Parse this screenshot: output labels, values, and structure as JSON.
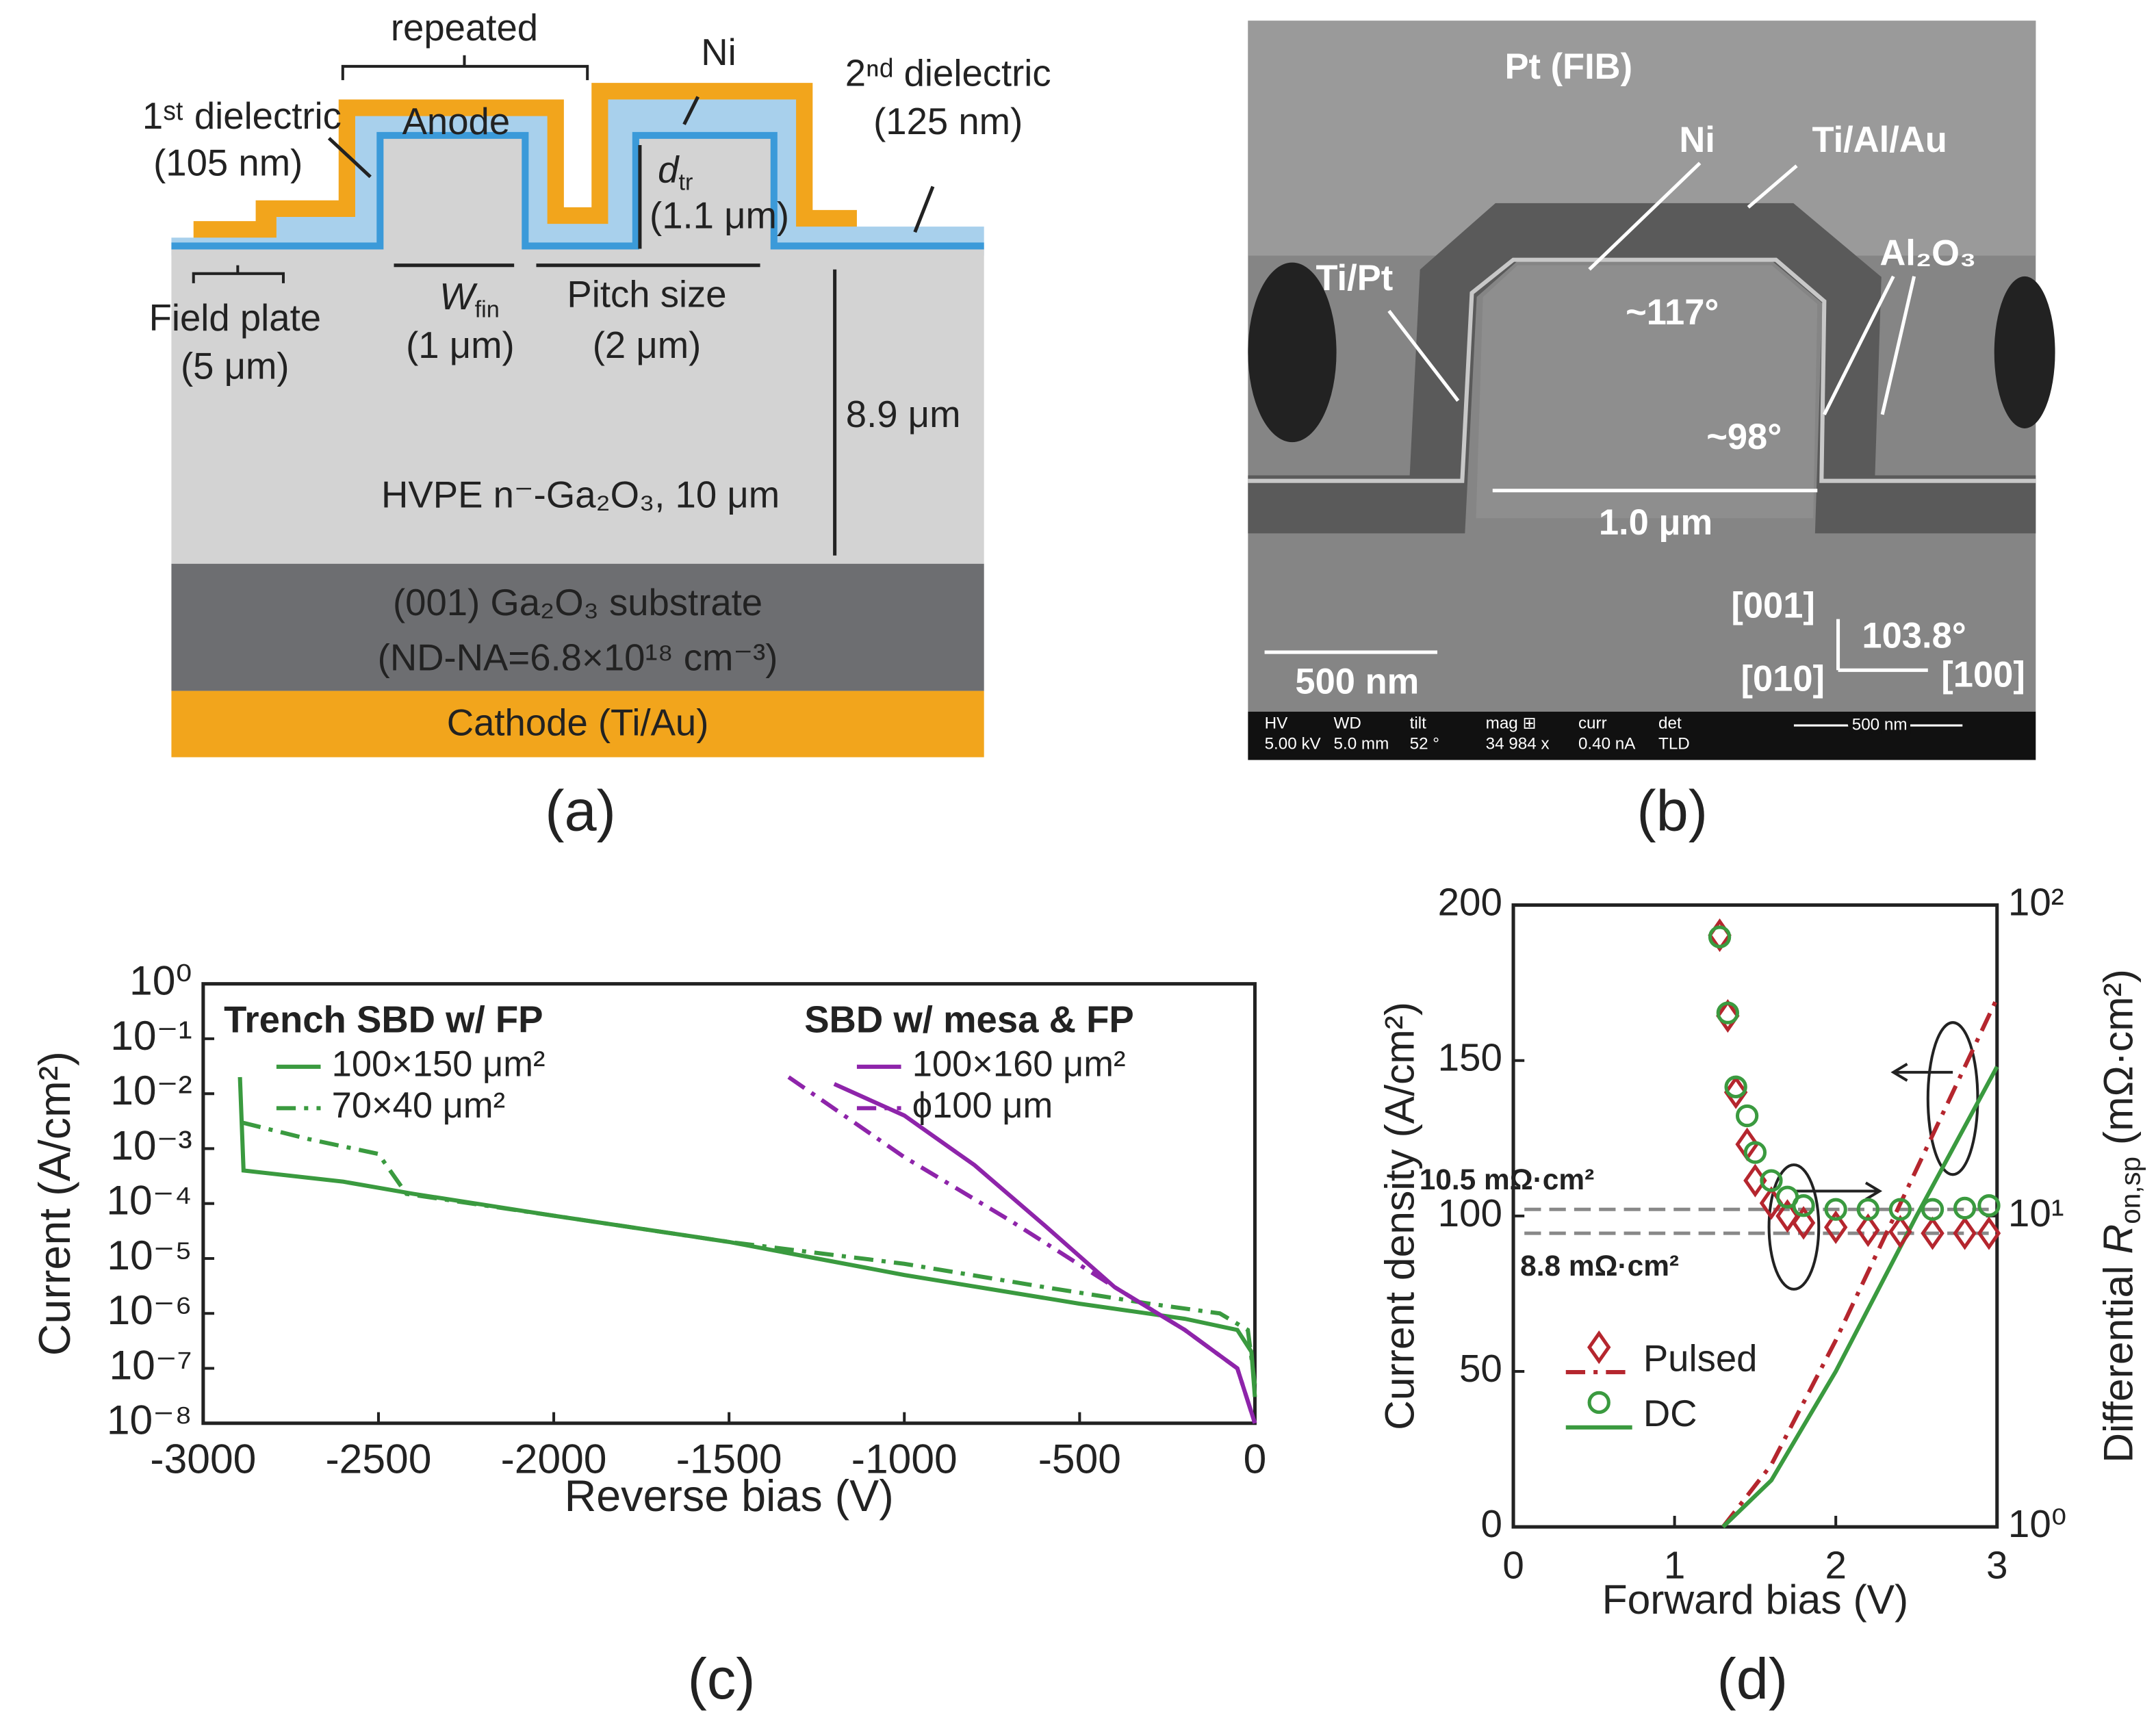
{
  "panel_labels": [
    "(a)",
    "(b)",
    "(c)",
    "(d)"
  ],
  "panel_a": {
    "repeated": "repeated",
    "ni": "Ni",
    "dielectric1": "1ˢᵗ dielectric",
    "dielectric1_thickness": "(105 nm)",
    "anode": "Anode",
    "dielectric2": "2ⁿᵈ dielectric",
    "dielectric2_thickness": "(125 nm)",
    "dtr": "d",
    "dtr_sub": "tr",
    "dtr_value": "(1.1 μm)",
    "field_plate": "Field plate",
    "field_plate_value": "(5 μm)",
    "wfin": "W",
    "wfin_sub": "fin",
    "wfin_value": "(1 μm)",
    "pitch": "Pitch size",
    "pitch_value": "(2 μm)",
    "depth": "8.9 μm",
    "epi": "HVPE n⁻-Ga₂O₃, 10 μm",
    "substrate": "(001) Ga₂O₃ substrate",
    "doping": "(ND-NA=6.8×10¹⁸ cm⁻³)",
    "cathode": "Cathode (Ti/Au)"
  },
  "panel_b": {
    "pt": "Pt (FIB)",
    "ni": "Ni",
    "tialau": "Ti/Al/Au",
    "tipt": "Ti/Pt",
    "al2o3": "Al₂O₃",
    "angle1": "~117°",
    "angle2": "~98°",
    "width": "1.0 μm",
    "scale": "500 nm",
    "dir001": "[001]",
    "angle3": "103.8°",
    "dir010": "[010]",
    "dir100": "[100]",
    "info_bar": [
      [
        "HV",
        "5.00 kV"
      ],
      [
        "WD",
        "5.0 mm"
      ],
      [
        "tilt",
        "52 °"
      ],
      [
        "mag ⊞",
        "34 984 x"
      ],
      [
        "curr",
        "0.40 nA"
      ],
      [
        "det",
        "TLD"
      ]
    ],
    "info_scale": "500 nm"
  },
  "chart_data": [
    {
      "type": "line",
      "xlabel": "Reverse bias (V)",
      "ylabel": "Current (A/cm²)",
      "xlim": [
        -3000,
        0
      ],
      "xticks": [
        -3000,
        -2500,
        -2000,
        -1500,
        -1000,
        -500,
        0
      ],
      "ylim": [
        1e-08,
        1
      ],
      "ylog": true,
      "yticks": [
        {
          "value": 1,
          "label": "10⁰"
        },
        {
          "value": 0.1,
          "label": "10⁻¹"
        },
        {
          "value": 0.01,
          "label": "10⁻²"
        },
        {
          "value": 0.001,
          "label": "10⁻³"
        },
        {
          "value": 0.0001,
          "label": "10⁻⁴"
        },
        {
          "value": 1e-05,
          "label": "10⁻⁵"
        },
        {
          "value": 1e-06,
          "label": "10⁻⁶"
        },
        {
          "value": 1e-07,
          "label": "10⁻⁷"
        },
        {
          "value": 1e-08,
          "label": "10⁻⁸"
        }
      ],
      "legend_groups": [
        {
          "title": "Trench SBD w/ FP",
          "color": "#3a9a3f"
        },
        {
          "title": "SBD w/ mesa & FP",
          "color": "#8e24aa"
        }
      ],
      "series": [
        {
          "name": "100×150 μm²",
          "color": "#3a9a3f",
          "dash": "solid",
          "x": [
            -2895,
            -2885,
            -2600,
            -2400,
            -2000,
            -1500,
            -1000,
            -500,
            -200,
            -50,
            -10,
            0
          ],
          "values": [
            0.02,
            0.0004,
            0.00025,
            0.00015,
            6e-05,
            2e-05,
            5e-06,
            1.5e-06,
            8e-07,
            5e-07,
            2e-07,
            3e-08
          ]
        },
        {
          "name": "70×40 μm²",
          "color": "#3a9a3f",
          "dash": "dashdot",
          "x": [
            -2890,
            -2700,
            -2500,
            -2420,
            -2000,
            -1500,
            -1000,
            -600,
            -300,
            -100,
            -20,
            0
          ],
          "values": [
            0.003,
            0.0015,
            0.0008,
            0.00015,
            6e-05,
            2e-05,
            8e-06,
            3e-06,
            1.5e-06,
            1e-06,
            5e-07,
            5e-08
          ]
        },
        {
          "name": "100×160 μm²",
          "color": "#8e24aa",
          "dash": "solid",
          "x": [
            -1200,
            -1000,
            -800,
            -600,
            -400,
            -200,
            -50,
            0
          ],
          "values": [
            0.015,
            0.004,
            0.0005,
            4e-05,
            3e-06,
            5e-07,
            1e-07,
            1e-08
          ]
        },
        {
          "name": "ϕ100 μm",
          "color": "#8e24aa",
          "dash": "dashdot",
          "x": [
            -1330,
            -1000,
            -700,
            -400,
            -200,
            -50,
            0
          ],
          "values": [
            0.02,
            0.0007,
            5e-05,
            3e-06,
            5e-07,
            1e-07,
            1e-08
          ]
        }
      ]
    },
    {
      "type": "line",
      "xlabel": "Forward bias (V)",
      "ylabel": "Current density (A/cm²)",
      "y2label": [
        "Differential ",
        "R",
        "on,sp",
        " (mΩ·cm²)"
      ],
      "xlim": [
        0,
        3
      ],
      "xticks": [
        0,
        1,
        2,
        3
      ],
      "ylim": [
        0,
        200
      ],
      "yticks": [
        0,
        50,
        100,
        150,
        200
      ],
      "y2lim": [
        1,
        100
      ],
      "y2log": true,
      "y2ticks": [
        {
          "value": 1,
          "label": "10⁰"
        },
        {
          "value": 10,
          "label": "10¹"
        },
        {
          "value": 100,
          "label": "10²"
        }
      ],
      "reference_lines": [
        {
          "value": 10.5,
          "label": "10.5 mΩ·cm²",
          "color": "#3a9a3f"
        },
        {
          "value": 8.8,
          "label": "8.8 mΩ·cm²",
          "color": "#b5262e"
        }
      ],
      "series": [
        {
          "name": "Pulsed",
          "color": "#b5262e",
          "dash": "dashdot",
          "x": [
            1.3,
            1.6,
            2.0,
            2.5,
            3.0
          ],
          "values": [
            0,
            20,
            60,
            115,
            170
          ]
        },
        {
          "name": "DC",
          "color": "#3a9a3f",
          "dash": "solid",
          "x": [
            1.3,
            1.6,
            2.0,
            2.5,
            3.0
          ],
          "values": [
            0,
            15,
            50,
            100,
            148
          ]
        },
        {
          "color": "#b5262e",
          "marker": "diamond",
          "axis": "y2",
          "x": [
            1.28,
            1.33,
            1.38,
            1.45,
            1.5,
            1.6,
            1.7,
            1.8,
            2.0,
            2.2,
            2.4,
            2.6,
            2.8,
            2.95
          ],
          "values": [
            80,
            44,
            25,
            17,
            13,
            11,
            10,
            9.5,
            9.2,
            9.0,
            8.9,
            8.8,
            8.8,
            8.8
          ]
        },
        {
          "color": "#3a9a3f",
          "marker": "circle",
          "axis": "y2",
          "x": [
            1.28,
            1.33,
            1.38,
            1.45,
            1.5,
            1.6,
            1.7,
            1.8,
            2.0,
            2.2,
            2.4,
            2.6,
            2.8,
            2.95
          ],
          "values": [
            79,
            45,
            26,
            21,
            16,
            13,
            11.5,
            10.8,
            10.5,
            10.5,
            10.5,
            10.5,
            10.6,
            10.8
          ]
        }
      ]
    }
  ]
}
